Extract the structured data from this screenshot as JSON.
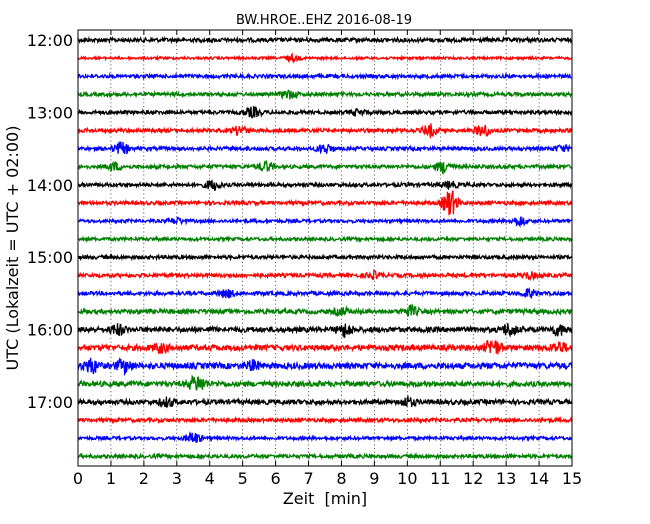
{
  "chart_data": {
    "type": "line",
    "title": "BW.HROE..EHZ 2016-08-19",
    "xlabel": "Zeit  [min]",
    "ylabel": "UTC (Lokalzeit = UTC + 02:00)",
    "xlim": [
      0,
      15
    ],
    "x_ticks": [
      "0",
      "1",
      "2",
      "3",
      "4",
      "5",
      "6",
      "7",
      "8",
      "9",
      "10",
      "11",
      "12",
      "13",
      "14",
      "15"
    ],
    "y_tick_labels": [
      "12:00",
      "13:00",
      "14:00",
      "15:00",
      "16:00",
      "17:00"
    ],
    "grid": "vertical dotted",
    "series_colors": [
      "#000000",
      "#ff0000",
      "#0000ff",
      "#008000"
    ],
    "traces": [
      {
        "start": "12:00",
        "color": "#000000"
      },
      {
        "start": "12:15",
        "color": "#ff0000"
      },
      {
        "start": "12:30",
        "color": "#0000ff"
      },
      {
        "start": "12:45",
        "color": "#008000"
      },
      {
        "start": "13:00",
        "color": "#000000"
      },
      {
        "start": "13:15",
        "color": "#ff0000"
      },
      {
        "start": "13:30",
        "color": "#0000ff"
      },
      {
        "start": "13:45",
        "color": "#008000"
      },
      {
        "start": "14:00",
        "color": "#000000"
      },
      {
        "start": "14:15",
        "color": "#ff0000"
      },
      {
        "start": "14:30",
        "color": "#0000ff"
      },
      {
        "start": "14:45",
        "color": "#008000"
      },
      {
        "start": "15:00",
        "color": "#000000"
      },
      {
        "start": "15:15",
        "color": "#ff0000"
      },
      {
        "start": "15:30",
        "color": "#0000ff"
      },
      {
        "start": "15:45",
        "color": "#008000"
      },
      {
        "start": "16:00",
        "color": "#000000"
      },
      {
        "start": "16:15",
        "color": "#ff0000"
      },
      {
        "start": "16:30",
        "color": "#0000ff"
      },
      {
        "start": "16:45",
        "color": "#008000"
      },
      {
        "start": "17:00",
        "color": "#000000"
      },
      {
        "start": "17:15",
        "color": "#ff0000"
      },
      {
        "start": "17:30",
        "color": "#0000ff"
      },
      {
        "start": "17:45",
        "color": "#008000"
      }
    ]
  }
}
